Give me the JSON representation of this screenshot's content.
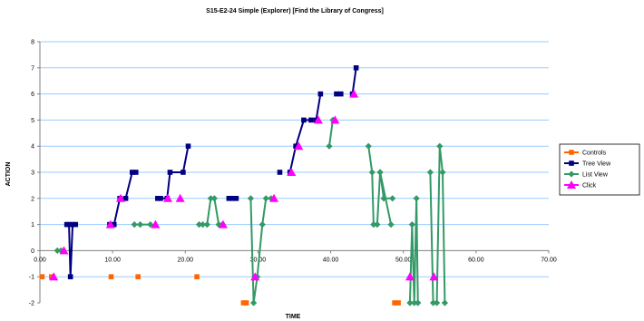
{
  "chart_data": {
    "type": "line",
    "title": "S15-E2-24 Simple (Explorer) [Find the Library of Congress]",
    "xlabel": "TIME",
    "ylabel": "ACTION",
    "xlim": [
      0,
      70
    ],
    "ylim": [
      -2,
      8
    ],
    "x_ticks": [
      "0.00",
      "10.00",
      "20.00",
      "30.00",
      "40.00",
      "50.00",
      "60.00",
      "70.00"
    ],
    "y_ticks": [
      "-2",
      "-1",
      "0",
      "1",
      "2",
      "3",
      "4",
      "5",
      "6",
      "7",
      "8"
    ],
    "grid": "horizontal",
    "legend": "right",
    "colors": {
      "controls": "#ff6600",
      "tree_view": "#000080",
      "list_view": "#339966",
      "click": "#ff00ff",
      "grid": "#99ccff"
    },
    "series": [
      {
        "name": "Controls",
        "marker": "square",
        "connected": false,
        "points": [
          [
            0.3,
            -1
          ],
          [
            1.6,
            -1
          ],
          [
            9.8,
            -1
          ],
          [
            13.5,
            -1
          ],
          [
            21.6,
            -1
          ],
          [
            28.0,
            -2
          ],
          [
            28.4,
            -2
          ],
          [
            48.8,
            -2
          ],
          [
            49.3,
            -2
          ]
        ]
      },
      {
        "name": "Tree View",
        "marker": "square",
        "connected": true,
        "segments": [
          [
            [
              3.7,
              1
            ],
            [
              4.0,
              1
            ],
            [
              4.2,
              -1
            ],
            [
              4.5,
              1
            ],
            [
              4.9,
              1
            ]
          ],
          [
            [
              9.6,
              1
            ],
            [
              10.2,
              1
            ],
            [
              11.0,
              2
            ],
            [
              11.8,
              2
            ],
            [
              12.7,
              3
            ],
            [
              13.2,
              3
            ]
          ],
          [
            [
              16.2,
              2
            ],
            [
              16.6,
              2
            ],
            [
              17.5,
              2
            ],
            [
              17.9,
              3
            ],
            [
              19.7,
              3
            ],
            [
              20.4,
              4
            ]
          ],
          [
            [
              26.0,
              2
            ],
            [
              26.5,
              2
            ],
            [
              27.0,
              2
            ]
          ],
          [
            [
              33.0,
              3
            ]
          ],
          [
            [
              34.4,
              3
            ],
            [
              35.2,
              4
            ],
            [
              36.3,
              5
            ],
            [
              37.3,
              5
            ],
            [
              38.0,
              5
            ],
            [
              38.6,
              6
            ]
          ],
          [
            [
              40.8,
              6
            ],
            [
              41.4,
              6
            ]
          ],
          [
            [
              43.0,
              6
            ],
            [
              43.5,
              7
            ]
          ]
        ]
      },
      {
        "name": "List View",
        "marker": "diamond",
        "connected": true,
        "segments": [
          [
            [
              2.4,
              0
            ],
            [
              2.9,
              0
            ]
          ],
          [
            [
              13.0,
              1
            ],
            [
              13.8,
              1
            ],
            [
              15.2,
              1
            ]
          ],
          [
            [
              21.9,
              1
            ],
            [
              22.4,
              1
            ],
            [
              23.0,
              1
            ],
            [
              23.5,
              2
            ],
            [
              24.0,
              2
            ],
            [
              24.6,
              1
            ],
            [
              25.1,
              1
            ]
          ],
          [
            [
              29.0,
              2
            ],
            [
              29.4,
              -2
            ],
            [
              29.9,
              -1
            ],
            [
              30.6,
              1
            ],
            [
              31.1,
              2
            ],
            [
              31.8,
              2
            ]
          ],
          [
            [
              39.8,
              4
            ],
            [
              40.3,
              5
            ]
          ],
          [
            [
              45.2,
              4
            ],
            [
              45.7,
              3
            ],
            [
              45.9,
              1
            ],
            [
              46.4,
              1
            ],
            [
              46.8,
              3
            ],
            [
              47.3,
              2
            ],
            [
              48.5,
              2
            ]
          ],
          [
            [
              46.8,
              3
            ],
            [
              48.3,
              1
            ]
          ],
          [
            [
              50.9,
              -2
            ],
            [
              51.2,
              1
            ],
            [
              51.5,
              -2
            ],
            [
              51.8,
              2
            ],
            [
              52.0,
              -2
            ]
          ],
          [
            [
              53.7,
              3
            ],
            [
              54.1,
              -2
            ],
            [
              54.6,
              -2
            ],
            [
              55.0,
              4
            ],
            [
              55.4,
              3
            ],
            [
              55.7,
              -2
            ]
          ]
        ]
      },
      {
        "name": "Click",
        "marker": "triangle",
        "connected": false,
        "points": [
          [
            1.9,
            -1
          ],
          [
            3.3,
            0
          ],
          [
            9.7,
            1
          ],
          [
            11.1,
            2
          ],
          [
            15.9,
            1
          ],
          [
            17.6,
            2
          ],
          [
            19.3,
            2
          ],
          [
            25.2,
            1
          ],
          [
            29.6,
            -1
          ],
          [
            32.2,
            2
          ],
          [
            34.6,
            3
          ],
          [
            35.6,
            4
          ],
          [
            38.3,
            5
          ],
          [
            40.6,
            5
          ],
          [
            43.2,
            6
          ],
          [
            50.9,
            -1
          ],
          [
            54.2,
            -1
          ]
        ]
      }
    ]
  }
}
